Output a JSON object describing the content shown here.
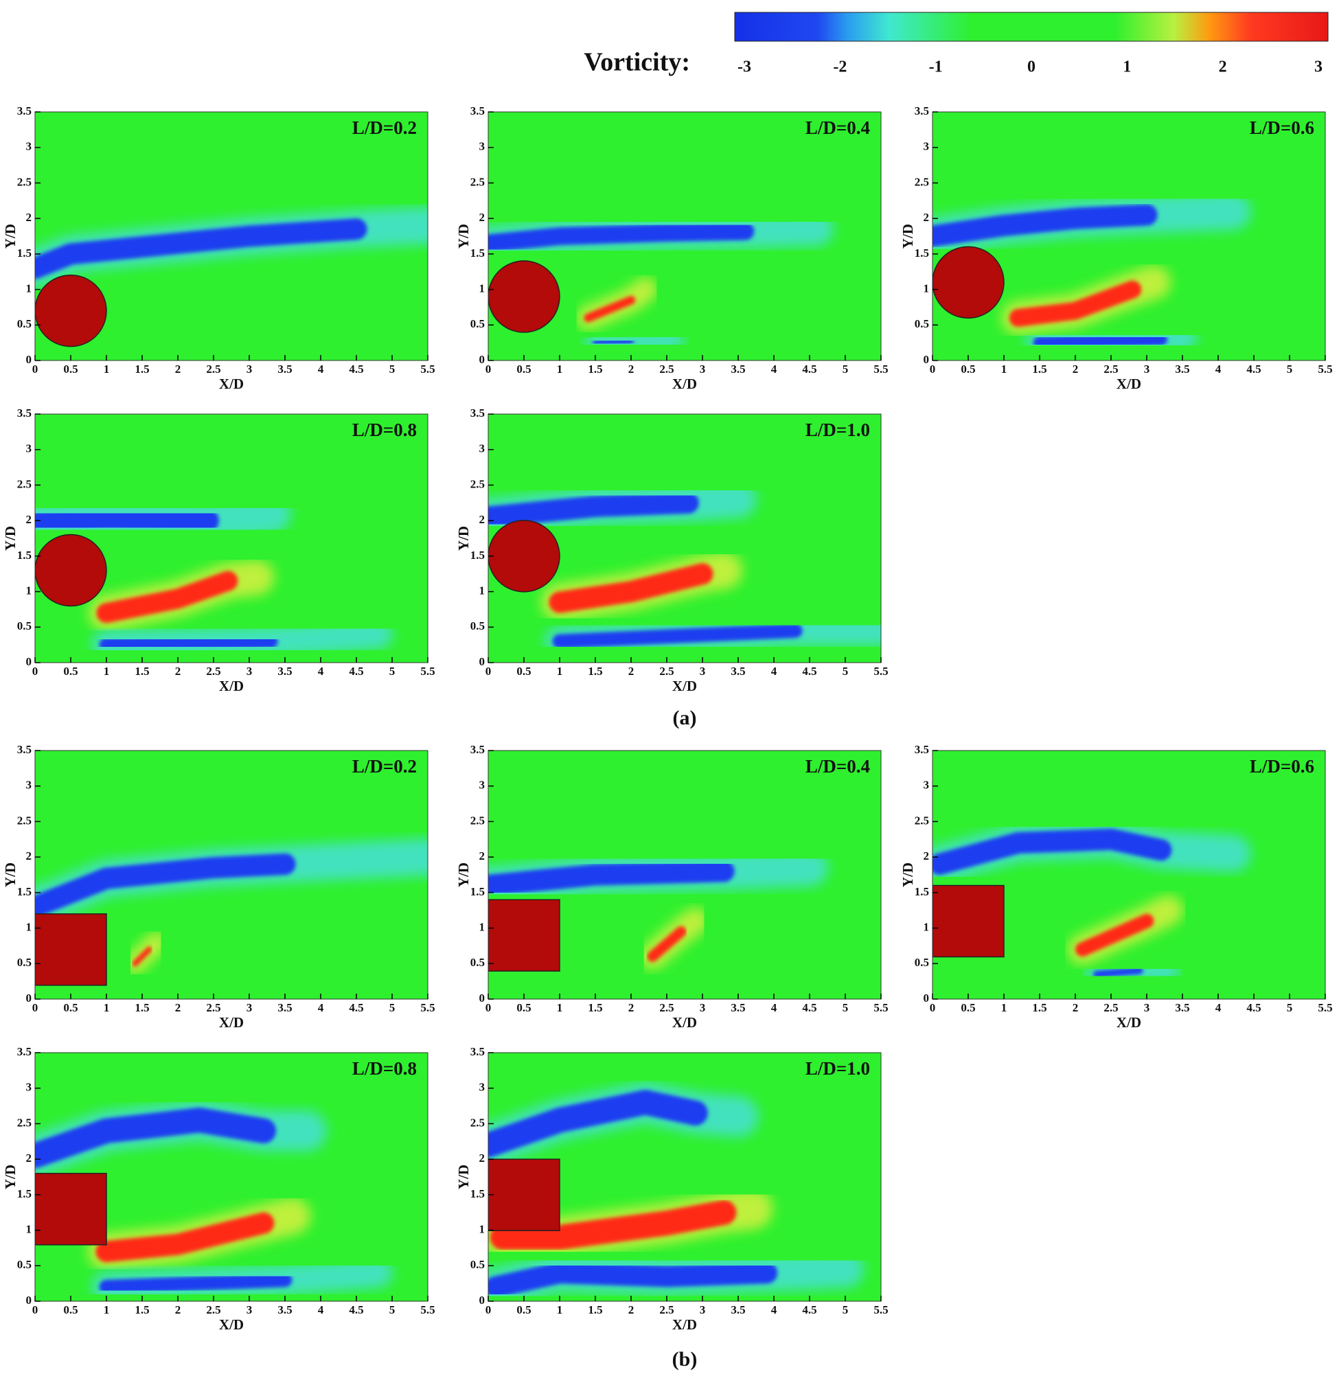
{
  "colorbar": {
    "label": "Vorticity:",
    "lim": [
      -3,
      3
    ],
    "ticks": [
      -3,
      -2,
      -1,
      0,
      1,
      2,
      3
    ]
  },
  "subfigure_labels": [
    "(a)",
    "(b)"
  ],
  "chart_data": [
    {
      "type": "contour",
      "title": "L/D=0.2",
      "xlabel": "X/D",
      "ylabel": "Y/D",
      "xlim": [
        0,
        5.5
      ],
      "ylim": [
        0,
        3.5
      ],
      "xticks": [
        0,
        0.5,
        1,
        1.5,
        2,
        2.5,
        3,
        3.5,
        4,
        4.5,
        5,
        5.5
      ],
      "yticks": [
        0,
        0.5,
        1,
        1.5,
        2,
        2.5,
        3,
        3.5
      ]
    },
    {
      "type": "contour",
      "title": "L/D=0.4",
      "xlabel": "X/D",
      "ylabel": "Y/D",
      "xlim": [
        0,
        5.5
      ],
      "ylim": [
        0,
        3.5
      ],
      "xticks": [
        0,
        0.5,
        1,
        1.5,
        2,
        2.5,
        3,
        3.5,
        4,
        4.5,
        5,
        5.5
      ],
      "yticks": [
        0,
        0.5,
        1,
        1.5,
        2,
        2.5,
        3,
        3.5
      ]
    },
    {
      "type": "contour",
      "title": "L/D=0.6",
      "xlabel": "X/D",
      "ylabel": "Y/D",
      "xlim": [
        0,
        5.5
      ],
      "ylim": [
        0,
        3.5
      ],
      "xticks": [
        0,
        0.5,
        1,
        1.5,
        2,
        2.5,
        3,
        3.5,
        4,
        4.5,
        5,
        5.5
      ],
      "yticks": [
        0,
        0.5,
        1,
        1.5,
        2,
        2.5,
        3,
        3.5
      ]
    },
    {
      "type": "contour",
      "title": "L/D=0.8",
      "xlabel": "X/D",
      "ylabel": "Y/D",
      "xlim": [
        0,
        5.5
      ],
      "ylim": [
        0,
        3.5
      ],
      "xticks": [
        0,
        0.5,
        1,
        1.5,
        2,
        2.5,
        3,
        3.5,
        4,
        4.5,
        5,
        5.5
      ],
      "yticks": [
        0,
        0.5,
        1,
        1.5,
        2,
        2.5,
        3,
        3.5
      ]
    },
    {
      "type": "contour",
      "title": "L/D=1.0",
      "xlabel": "X/D",
      "ylabel": "Y/D",
      "xlim": [
        0,
        5.5
      ],
      "ylim": [
        0,
        3.5
      ],
      "xticks": [
        0,
        0.5,
        1,
        1.5,
        2,
        2.5,
        3,
        3.5,
        4,
        4.5,
        5,
        5.5
      ],
      "yticks": [
        0,
        0.5,
        1,
        1.5,
        2,
        2.5,
        3,
        3.5
      ]
    },
    {
      "type": "contour",
      "title": "L/D=0.2",
      "xlabel": "X/D",
      "ylabel": "Y/D",
      "xlim": [
        0,
        5.5
      ],
      "ylim": [
        0,
        3.5
      ],
      "xticks": [
        0,
        0.5,
        1,
        1.5,
        2,
        2.5,
        3,
        3.5,
        4,
        4.5,
        5,
        5.5
      ],
      "yticks": [
        0,
        0.5,
        1,
        1.5,
        2,
        2.5,
        3,
        3.5
      ]
    },
    {
      "type": "contour",
      "title": "L/D=0.4",
      "xlabel": "X/D",
      "ylabel": "Y/D",
      "xlim": [
        0,
        5.5
      ],
      "ylim": [
        0,
        3.5
      ],
      "xticks": [
        0,
        0.5,
        1,
        1.5,
        2,
        2.5,
        3,
        3.5,
        4,
        4.5,
        5,
        5.5
      ],
      "yticks": [
        0,
        0.5,
        1,
        1.5,
        2,
        2.5,
        3,
        3.5
      ]
    },
    {
      "type": "contour",
      "title": "L/D=0.6",
      "xlabel": "X/D",
      "ylabel": "Y/D",
      "xlim": [
        0,
        5.5
      ],
      "ylim": [
        0,
        3.5
      ],
      "xticks": [
        0,
        0.5,
        1,
        1.5,
        2,
        2.5,
        3,
        3.5,
        4,
        4.5,
        5,
        5.5
      ],
      "yticks": [
        0,
        0.5,
        1,
        1.5,
        2,
        2.5,
        3,
        3.5
      ]
    },
    {
      "type": "contour",
      "title": "L/D=0.8",
      "xlabel": "X/D",
      "ylabel": "Y/D",
      "xlim": [
        0,
        5.5
      ],
      "ylim": [
        0,
        3.5
      ],
      "xticks": [
        0,
        0.5,
        1,
        1.5,
        2,
        2.5,
        3,
        3.5,
        4,
        4.5,
        5,
        5.5
      ],
      "yticks": [
        0,
        0.5,
        1,
        1.5,
        2,
        2.5,
        3,
        3.5
      ]
    },
    {
      "type": "contour",
      "title": "L/D=1.0",
      "xlabel": "X/D",
      "ylabel": "Y/D",
      "xlim": [
        0,
        5.5
      ],
      "ylim": [
        0,
        3.5
      ],
      "xticks": [
        0,
        0.5,
        1,
        1.5,
        2,
        2.5,
        3,
        3.5,
        4,
        4.5,
        5,
        5.5
      ],
      "yticks": [
        0,
        0.5,
        1,
        1.5,
        2,
        2.5,
        3,
        3.5
      ]
    }
  ]
}
